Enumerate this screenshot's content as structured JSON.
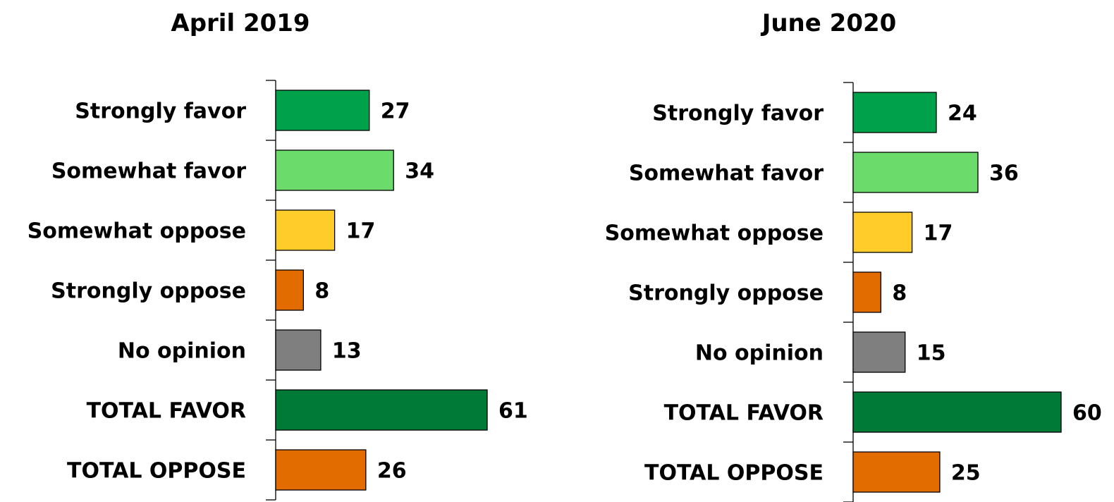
{
  "chart_data": [
    {
      "type": "bar",
      "orientation": "horizontal",
      "title": "April 2019",
      "categories": [
        "Strongly favor",
        "Somewhat favor",
        "Somewhat oppose",
        "Strongly oppose",
        "No opinion",
        "TOTAL FAVOR",
        "TOTAL OPPOSE"
      ],
      "values": [
        27,
        34,
        17,
        8,
        13,
        61,
        26
      ],
      "colors": [
        "#00A14B",
        "#6BDB6B",
        "#FFCC29",
        "#E26C00",
        "#7F7F7F",
        "#007A37",
        "#E26C00"
      ],
      "data_labels": true,
      "grid": false,
      "xlim": [
        0,
        61
      ]
    },
    {
      "type": "bar",
      "orientation": "horizontal",
      "title": "June 2020",
      "categories": [
        "Strongly favor",
        "Somewhat favor",
        "Somewhat oppose",
        "Strongly oppose",
        "No opinion",
        "TOTAL FAVOR",
        "TOTAL OPPOSE"
      ],
      "values": [
        24,
        36,
        17,
        8,
        15,
        60,
        25
      ],
      "colors": [
        "#00A14B",
        "#6BDB6B",
        "#FFCC29",
        "#E26C00",
        "#7F7F7F",
        "#007A37",
        "#E26C00"
      ],
      "data_labels": true,
      "grid": false,
      "xlim": [
        0,
        60
      ]
    }
  ]
}
